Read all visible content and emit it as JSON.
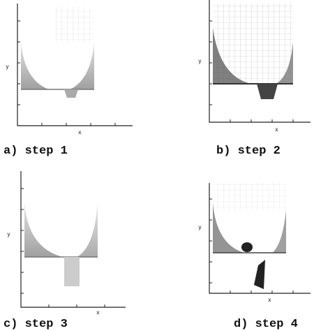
{
  "figure": {
    "panels": [
      {
        "caption": "a) step 1",
        "x_label": "x",
        "y_label": "y"
      },
      {
        "caption": "b) step 2",
        "x_label": "x",
        "y_label": "y"
      },
      {
        "caption": "c) step 3",
        "x_label": "x",
        "y_label": "y"
      },
      {
        "caption": "d) step 4",
        "x_label": "x",
        "y_label": "y"
      }
    ]
  }
}
